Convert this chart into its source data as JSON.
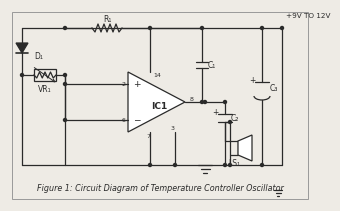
{
  "bg_color": "#eeebe5",
  "line_color": "#2a2a2a",
  "title": "Figure 1: Circuit Diagram of Temperature Controller Oscillator",
  "title_fontsize": 5.8,
  "supply_label": "+9V TO 12V",
  "component_labels": {
    "VR1": "VR₁",
    "R1": "R₁",
    "C1": "C₁",
    "C2": "C₂",
    "C3": "C₃",
    "D1": "D₁",
    "IC1": "IC1",
    "LS1": "LS₁"
  },
  "pin_labels": {
    "p2": "2",
    "p14": "14",
    "p8": "8",
    "p6": "6",
    "p7": "7",
    "p3": "3"
  }
}
